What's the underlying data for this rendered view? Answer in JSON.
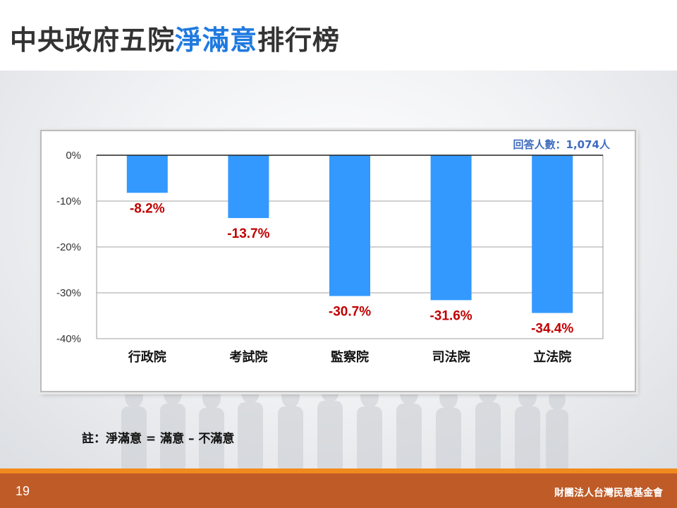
{
  "slide": {
    "title_main": "中央政府五院",
    "title_highlight": "淨滿意",
    "title_tail": "排行榜",
    "note": "註：淨滿意 = 滿意 – 不滿意",
    "page_number": "19",
    "organization": "財團法人台灣民意基金會"
  },
  "colors": {
    "title_highlight": "#1f7ae0",
    "bar": "#3399ff",
    "data_label": "#c00000",
    "sample_text": "#3e6bbf",
    "footer": "#bf5b27",
    "footer_line": "#f08a1c"
  },
  "chart_data": {
    "type": "bar",
    "categories": [
      "行政院",
      "考試院",
      "監察院",
      "司法院",
      "立法院"
    ],
    "values": [
      -8.2,
      -13.7,
      -30.7,
      -31.6,
      -34.4
    ],
    "data_labels": [
      "-8.2%",
      "-13.7%",
      "-30.7%",
      "-31.6%",
      "-34.4%"
    ],
    "y_ticks": [
      "0%",
      "-10%",
      "-20%",
      "-30%",
      "-40%"
    ],
    "y_tick_values": [
      0,
      -10,
      -20,
      -30,
      -40
    ],
    "ylim": [
      -40,
      0
    ],
    "grid": true,
    "annotation": "回答人數：1,074人",
    "annotation_position": "top-right"
  }
}
